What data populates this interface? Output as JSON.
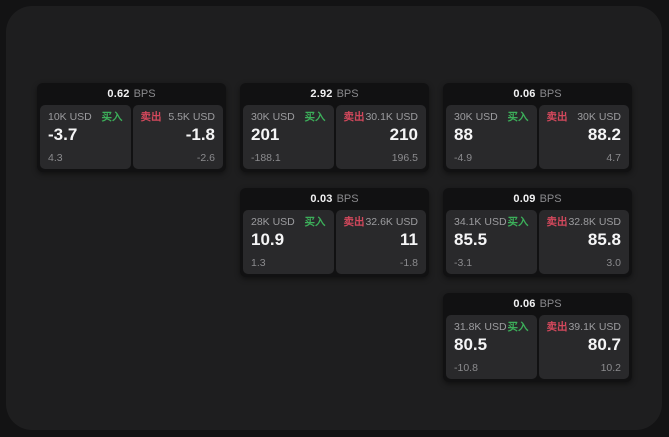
{
  "labels": {
    "bps_unit": "BPS",
    "buy": "买入",
    "sell": "卖出"
  },
  "colors": {
    "surface": "#1E1E1F",
    "card": "#111112",
    "panel": "#29292B",
    "buy_green": "#3CAF5A",
    "sell_red": "#D3485C"
  },
  "cards": [
    {
      "bps": "0.62",
      "row": 1,
      "col": 1,
      "buy": {
        "notional": "10K USD",
        "price": "-3.7",
        "change": "4.3"
      },
      "sell": {
        "notional": "5.5K USD",
        "price": "-1.8",
        "change": "-2.6"
      }
    },
    {
      "bps": "2.92",
      "row": 1,
      "col": 2,
      "buy": {
        "notional": "30K USD",
        "price": "201",
        "change": "-188.1"
      },
      "sell": {
        "notional": "30.1K USD",
        "price": "210",
        "change": "196.5"
      }
    },
    {
      "bps": "0.06",
      "row": 1,
      "col": 3,
      "buy": {
        "notional": "30K USD",
        "price": "88",
        "change": "-4.9"
      },
      "sell": {
        "notional": "30K USD",
        "price": "88.2",
        "change": "4.7"
      }
    },
    {
      "bps": "0.03",
      "row": 2,
      "col": 2,
      "buy": {
        "notional": "28K USD",
        "price": "10.9",
        "change": "1.3"
      },
      "sell": {
        "notional": "32.6K USD",
        "price": "11",
        "change": "-1.8"
      }
    },
    {
      "bps": "0.09",
      "row": 2,
      "col": 3,
      "buy": {
        "notional": "34.1K USD",
        "price": "85.5",
        "change": "-3.1"
      },
      "sell": {
        "notional": "32.8K USD",
        "price": "85.8",
        "change": "3.0"
      }
    },
    {
      "bps": "0.06",
      "row": 3,
      "col": 3,
      "buy": {
        "notional": "31.8K USD",
        "price": "80.5",
        "change": "-10.8"
      },
      "sell": {
        "notional": "39.1K USD",
        "price": "80.7",
        "change": "10.2"
      }
    }
  ]
}
